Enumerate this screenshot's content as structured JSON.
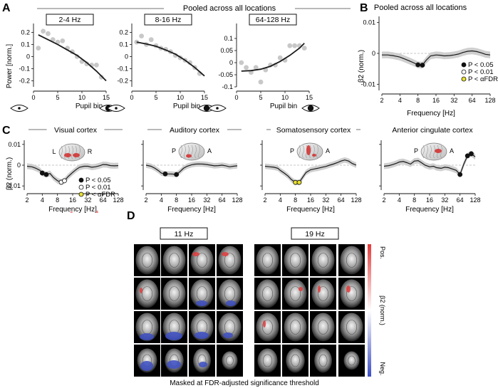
{
  "panel_labels": {
    "a": "A",
    "b": "B",
    "c": "C",
    "d": "D"
  },
  "colors": {
    "fit_line": "#1a1a1a",
    "scatter": "#c8c8c8",
    "ci_band": "#cfcfcf",
    "marker_p05": "#111111",
    "marker_p01": "#ffffff",
    "marker_fdr": "#e8e030",
    "pos": "#e23b3b",
    "neg": "#3d4fc4"
  },
  "panel_a": {
    "header": "Pooled across all locations",
    "xlabel": "Pupil bin",
    "ylabel": "Power [norm.]",
    "icons": [
      "pupil-small-icon",
      "pupil-large-icon"
    ]
  },
  "panel_b": {
    "header": "Pooled across all locations",
    "ylabel": "β2 (norm.)",
    "xlabel": "Frequency [Hz]",
    "legend": [
      "P < 0.05",
      "P < 0.01",
      "P < αFDR"
    ]
  },
  "panel_c": {
    "ylabel": "β2 (norm.)",
    "xlabel": "Frequency [Hz]",
    "legend": [
      "P < 0.05",
      "P < 0.01",
      "P < αFDR"
    ],
    "brain_labels": [
      {
        "left": "L",
        "right": "R"
      },
      {
        "left": "P",
        "right": "A"
      },
      {
        "left": "P",
        "right": "A"
      },
      {
        "left": "P",
        "right": "A"
      }
    ]
  },
  "panel_d": {
    "groups": [
      "11 Hz",
      "19 Hz"
    ],
    "colorbar_pos": "Pos.",
    "colorbar_neg": "Neg.",
    "colorbar_label": "β2 (norm.)",
    "caption": "Masked at FDR-adjusted significance threshold"
  },
  "chart_data": [
    {
      "id": "a1",
      "type": "scatter",
      "title": "2-4 Hz",
      "xlabel": "Pupil bin",
      "ylabel": "Power [norm.]",
      "xlim": [
        0,
        15
      ],
      "ylim": [
        -0.25,
        0.25
      ],
      "xticks": [
        0,
        5,
        10,
        15
      ],
      "yticks": [
        -0.2,
        -0.1,
        0,
        0.1,
        0.2
      ],
      "ytick_labels": [
        "-0.2",
        "-0.1",
        "0",
        "0.1",
        "0.2"
      ],
      "x": [
        1,
        2,
        3,
        4,
        5,
        6,
        7,
        8,
        9,
        10,
        11,
        12,
        13,
        14
      ],
      "y": [
        0.07,
        0.21,
        0.19,
        0.14,
        0.12,
        0.13,
        0.07,
        0.04,
        0.0,
        -0.04,
        -0.06,
        -0.07,
        -0.07,
        -0.17
      ],
      "fit": {
        "x": [
          1,
          3,
          5,
          7,
          9,
          11,
          13,
          15
        ],
        "y": [
          0.18,
          0.14,
          0.1,
          0.055,
          0.01,
          -0.05,
          -0.12,
          -0.2
        ]
      }
    },
    {
      "id": "a2",
      "type": "scatter",
      "title": "8-16 Hz",
      "xlabel": "Pupil bin",
      "ylabel": "",
      "xlim": [
        0,
        15
      ],
      "ylim": [
        -0.25,
        0.25
      ],
      "xticks": [
        0,
        5,
        10,
        15
      ],
      "yticks": [
        -0.2,
        -0.1,
        0,
        0.1,
        0.2
      ],
      "ytick_labels": [
        "-0.2",
        "-0.1",
        "0",
        "0.1",
        "0.2"
      ],
      "x": [
        1,
        2,
        3,
        4,
        5,
        6,
        7,
        8,
        9,
        10,
        11,
        12,
        13,
        14
      ],
      "y": [
        0.12,
        0.17,
        0.1,
        0.14,
        0.09,
        0.07,
        0.06,
        0.04,
        0.01,
        -0.01,
        -0.03,
        -0.05,
        -0.09,
        -0.14
      ],
      "fit": {
        "x": [
          1,
          3,
          5,
          7,
          9,
          11,
          13,
          15
        ],
        "y": [
          0.12,
          0.105,
          0.085,
          0.055,
          0.02,
          -0.03,
          -0.09,
          -0.16
        ]
      }
    },
    {
      "id": "a3",
      "type": "scatter",
      "title": "64-128 Hz",
      "xlabel": "Pupil bin",
      "ylabel": "",
      "xlim": [
        0,
        15
      ],
      "ylim": [
        -0.1,
        0.15
      ],
      "xticks": [
        0,
        5,
        10,
        15
      ],
      "yticks": [
        -0.1,
        -0.05,
        0,
        0.05,
        0.1
      ],
      "ytick_labels": [
        "-0.1",
        "-0.05",
        "0",
        "0.05",
        "0.1"
      ],
      "x": [
        1,
        2,
        3,
        4,
        5,
        6,
        7,
        8,
        9,
        10,
        11,
        12,
        13,
        14
      ],
      "y": [
        0.0,
        -0.02,
        -0.04,
        -0.02,
        -0.08,
        -0.03,
        -0.01,
        -0.01,
        0.02,
        0.01,
        0.07,
        0.07,
        0.07,
        0.06
      ],
      "fit": {
        "x": [
          1,
          3,
          5,
          7,
          9,
          11,
          13,
          14
        ],
        "y": [
          -0.035,
          -0.033,
          -0.027,
          -0.015,
          0.005,
          0.03,
          0.06,
          0.08
        ]
      }
    },
    {
      "id": "b",
      "type": "line",
      "title": "Pooled across all locations",
      "xlabel": "Frequency [Hz]",
      "ylabel": "β2 (norm.)",
      "xlim": [
        2,
        128
      ],
      "ylim": [
        -0.012,
        0.012
      ],
      "xticks": [
        2,
        4,
        8,
        16,
        32,
        64,
        128
      ],
      "yticks": [
        -0.01,
        0,
        0.01
      ],
      "ytick_labels": [
        "-0.01",
        "0",
        "0.01"
      ],
      "x": [
        2,
        2.5,
        3,
        3.6,
        4,
        4.8,
        5.7,
        6.7,
        8,
        9.5,
        11,
        13,
        16,
        19,
        22,
        27,
        32,
        38,
        45,
        54,
        64,
        76,
        90,
        107,
        128
      ],
      "y": [
        -0.0005,
        -0.0005,
        -0.0007,
        -0.001,
        -0.0012,
        -0.0018,
        -0.0024,
        -0.003,
        -0.0037,
        -0.0038,
        -0.0022,
        -0.0008,
        -0.0005,
        -0.0006,
        -0.0008,
        -0.0007,
        -0.0005,
        -0.0002,
        0.0003,
        0.0007,
        0.0008,
        0.0006,
        0.0002,
        -0.0003,
        -0.0005
      ],
      "ci": 0.0011,
      "markers": [
        {
          "x": 8,
          "y": -0.0037,
          "level": "p05"
        },
        {
          "x": 9.5,
          "y": -0.0038,
          "level": "p05"
        }
      ]
    },
    {
      "id": "c1",
      "type": "line",
      "title": "Visual cortex",
      "xlabel": "Frequency [Hz]",
      "ylabel": "β2 (norm.)",
      "xlim": [
        2,
        128
      ],
      "ylim": [
        -0.012,
        0.012
      ],
      "xticks": [
        2,
        4,
        8,
        16,
        32,
        64,
        128
      ],
      "yticks": [
        -0.01,
        0,
        0.01
      ],
      "ytick_labels": [
        "-0.01",
        "0",
        "0.01"
      ],
      "x": [
        2,
        2.5,
        3,
        3.6,
        4,
        4.8,
        5.7,
        6.7,
        8,
        9.5,
        11,
        13,
        16,
        19,
        22,
        27,
        32,
        38,
        45,
        54,
        64,
        76,
        90,
        107,
        128
      ],
      "y": [
        -0.0005,
        -0.0008,
        -0.0015,
        -0.0025,
        -0.0038,
        -0.0045,
        -0.004,
        -0.006,
        -0.0075,
        -0.0082,
        -0.0075,
        -0.0055,
        -0.0035,
        -0.002,
        -0.001,
        -0.0005,
        -0.0005,
        -0.001,
        -0.0008,
        -0.0003,
        0.0003,
        0.0002,
        -0.0002,
        -0.0003,
        -0.0002
      ],
      "ci": 0.0014,
      "markers": [
        {
          "x": 4,
          "y": -0.0038,
          "level": "p05"
        },
        {
          "x": 4.8,
          "y": -0.0045,
          "level": "p05"
        },
        {
          "x": 9.5,
          "y": -0.0082,
          "level": "p01"
        },
        {
          "x": 11,
          "y": -0.0075,
          "level": "p01"
        }
      ]
    },
    {
      "id": "c2",
      "type": "line",
      "title": "Auditory cortex",
      "xlabel": "Frequency [Hz]",
      "ylabel": "",
      "xlim": [
        2,
        128
      ],
      "ylim": [
        -0.012,
        0.012
      ],
      "xticks": [
        2,
        4,
        8,
        16,
        32,
        64,
        128
      ],
      "yticks": [
        -0.01,
        0,
        0.01
      ],
      "ytick_labels": [
        "",
        "",
        ""
      ],
      "x": [
        2,
        2.5,
        3,
        3.6,
        4,
        4.8,
        5.7,
        6.7,
        8,
        9.5,
        11,
        13,
        16,
        19,
        22,
        27,
        32,
        38,
        45,
        54,
        64,
        76,
        90,
        107,
        128
      ],
      "y": [
        0.0,
        -0.0005,
        -0.0015,
        -0.0028,
        -0.0038,
        -0.0042,
        -0.0042,
        -0.0043,
        -0.0045,
        -0.003,
        -0.0015,
        -0.0005,
        0.0002,
        0.0005,
        0.0006,
        0.0005,
        0.0003,
        0.0,
        -0.0003,
        -0.0002,
        0.0,
        -0.0003,
        -0.0008,
        -0.0005,
        -0.0003
      ],
      "ci": 0.0013,
      "markers": [
        {
          "x": 4.8,
          "y": -0.0042,
          "level": "p05"
        },
        {
          "x": 8,
          "y": -0.0045,
          "level": "p05"
        }
      ]
    },
    {
      "id": "c3",
      "type": "line",
      "title": "Somatosensory cortex",
      "xlabel": "Frequency [Hz]",
      "ylabel": "",
      "xlim": [
        2,
        128
      ],
      "ylim": [
        -0.012,
        0.012
      ],
      "xticks": [
        2,
        4,
        8,
        16,
        32,
        64,
        128
      ],
      "yticks": [
        -0.01,
        0,
        0.01
      ],
      "ytick_labels": [
        "",
        "",
        ""
      ],
      "x": [
        2,
        2.5,
        3,
        3.6,
        4,
        4.8,
        5.7,
        6.7,
        8,
        9.5,
        11,
        13,
        16,
        19,
        22,
        27,
        32,
        38,
        45,
        54,
        64,
        76,
        90,
        107,
        128
      ],
      "y": [
        -0.0005,
        -0.0008,
        -0.001,
        -0.0015,
        -0.0025,
        -0.0038,
        -0.0052,
        -0.007,
        -0.0083,
        -0.0083,
        -0.006,
        -0.0035,
        -0.0022,
        -0.0018,
        -0.0015,
        -0.001,
        -0.0006,
        0.0,
        0.0005,
        0.0012,
        0.002,
        0.0025,
        0.002,
        0.0008,
        0.0
      ],
      "ci": 0.0013,
      "markers": [
        {
          "x": 8,
          "y": -0.0083,
          "level": "fdr"
        },
        {
          "x": 9.5,
          "y": -0.0083,
          "level": "fdr"
        }
      ]
    },
    {
      "id": "c4",
      "type": "line",
      "title": "Anterior cingulate cortex",
      "xlabel": "Frequency [Hz]",
      "ylabel": "",
      "xlim": [
        2,
        128
      ],
      "ylim": [
        -0.012,
        0.012
      ],
      "xticks": [
        2,
        4,
        8,
        16,
        32,
        64,
        128
      ],
      "yticks": [
        -0.01,
        0,
        0.01
      ],
      "ytick_labels": [
        "",
        "",
        ""
      ],
      "x": [
        2,
        2.5,
        3,
        3.6,
        4,
        4.8,
        5.7,
        6.7,
        8,
        9.5,
        11,
        13,
        16,
        19,
        22,
        27,
        32,
        38,
        45,
        54,
        64,
        76,
        90,
        107,
        128
      ],
      "y": [
        -0.0005,
        -0.0002,
        0.0003,
        0.001,
        0.0015,
        0.0018,
        0.0012,
        0.0005,
        0.002,
        0.0022,
        0.0012,
        0.0,
        -0.0008,
        -0.0005,
        -0.0012,
        -0.0015,
        -0.001,
        -0.0012,
        -0.0018,
        -0.0025,
        -0.0045,
        0.0005,
        0.0045,
        0.0055,
        0.004
      ],
      "ci": 0.0014,
      "markers": [
        {
          "x": 64,
          "y": -0.0045,
          "level": "p05"
        },
        {
          "x": 90,
          "y": 0.0045,
          "level": "p05"
        },
        {
          "x": 107,
          "y": 0.0055,
          "level": "p05"
        }
      ]
    }
  ]
}
